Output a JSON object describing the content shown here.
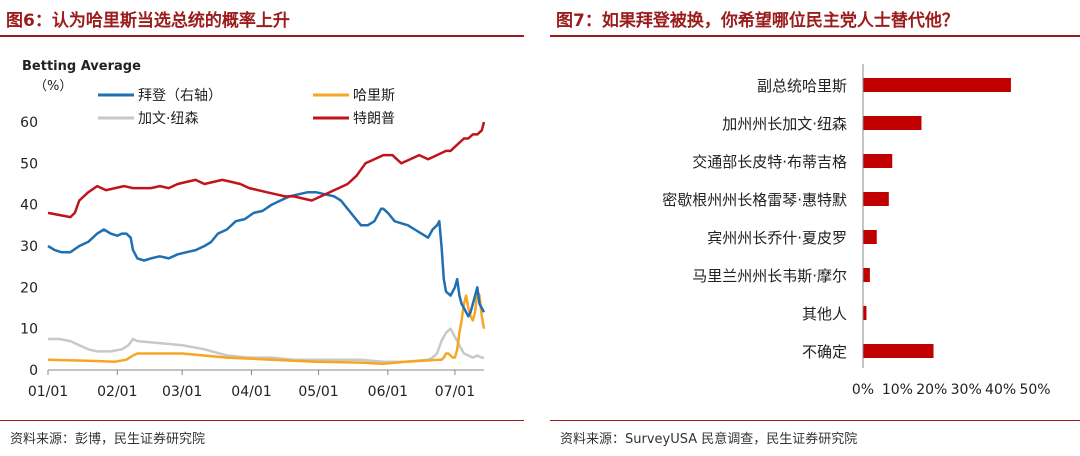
{
  "left": {
    "title": "图6：认为哈里斯当选总统的概率上升",
    "source": "资料来源：彭博，民生证券研究院"
  },
  "right": {
    "title": "图7：如果拜登被换，你希望哪位民主党人士替代他？",
    "source": "资料来源：SurveyUSA 民意调查，民生证券研究院"
  },
  "colors": {
    "title": "#9b1c1c",
    "biden": "#1f6fb4",
    "harris": "#f5a623",
    "kennedy": "#c8c8c8",
    "trump": "#c0141c",
    "bar": "#c00000"
  },
  "chart_data": [
    {
      "type": "line",
      "title": "Betting Average",
      "ylabel": "（%）",
      "ylim": [
        0,
        60
      ],
      "yticks": [
        "0",
        "10",
        "20",
        "30",
        "40",
        "50",
        "60"
      ],
      "xlim": [
        0,
        195
      ],
      "xticks": [
        {
          "label": "01/01",
          "x": 0
        },
        {
          "label": "02/01",
          "x": 31
        },
        {
          "label": "03/01",
          "x": 60
        },
        {
          "label": "04/01",
          "x": 91
        },
        {
          "label": "05/01",
          "x": 121
        },
        {
          "label": "06/01",
          "x": 152
        },
        {
          "label": "07/01",
          "x": 182
        }
      ],
      "series": [
        {
          "name": "拜登（右轴）",
          "color_key": "biden",
          "x": [
            0,
            3,
            6,
            10,
            14,
            18,
            22,
            25,
            28,
            31,
            33,
            35,
            37,
            38,
            40,
            43,
            46,
            50,
            54,
            58,
            62,
            66,
            70,
            73,
            76,
            80,
            84,
            88,
            92,
            96,
            100,
            104,
            108,
            112,
            116,
            120,
            124,
            128,
            131,
            134,
            137,
            140,
            143,
            146,
            149,
            150,
            152,
            155,
            158,
            161,
            164,
            167,
            170,
            172,
            174,
            175,
            176,
            177,
            178,
            180,
            181,
            182,
            183,
            184,
            185,
            186,
            187,
            188,
            189,
            190,
            191,
            192,
            193,
            194,
            195
          ],
          "y": [
            30,
            29,
            28.5,
            28.5,
            30,
            31,
            33,
            34,
            33,
            32.5,
            33,
            33,
            32,
            29,
            27,
            26.5,
            27,
            27.5,
            27,
            28,
            28.5,
            29,
            30,
            31,
            33,
            34,
            36,
            36.5,
            38,
            38.5,
            40,
            41,
            42,
            42.5,
            43,
            43,
            42.5,
            42,
            41,
            39,
            37,
            35,
            35,
            36,
            39,
            39,
            38,
            36,
            35.5,
            35,
            34,
            33,
            32,
            34,
            35,
            36,
            30,
            22,
            19,
            18,
            19,
            20,
            22,
            18,
            16,
            15,
            14,
            13,
            14,
            16,
            18,
            20,
            16,
            15,
            14
          ]
        },
        {
          "name": "哈里斯",
          "color_key": "harris",
          "x": [
            0,
            20,
            30,
            35,
            38,
            40,
            60,
            80,
            100,
            120,
            140,
            150,
            160,
            175,
            176,
            177,
            178,
            179,
            180,
            181,
            182,
            183,
            184,
            185,
            186,
            187,
            188,
            189,
            190,
            191,
            192,
            193,
            194,
            195
          ],
          "y": [
            2.5,
            2.2,
            2,
            2.5,
            3.5,
            4,
            4,
            3,
            2.5,
            2,
            1.8,
            1.5,
            2,
            2.5,
            2.5,
            3,
            4,
            4,
            3.5,
            3,
            3,
            5,
            9,
            12,
            16,
            18,
            15,
            13,
            12,
            14,
            19,
            18,
            13,
            10
          ]
        },
        {
          "name": "加文·纽森",
          "color_key": "kennedy",
          "x": [
            0,
            5,
            10,
            14,
            18,
            22,
            28,
            33,
            36,
            38,
            40,
            50,
            60,
            70,
            80,
            90,
            100,
            110,
            120,
            130,
            140,
            150,
            160,
            170,
            172,
            174,
            176,
            178,
            180,
            182,
            184,
            186,
            188,
            190,
            192,
            194,
            195
          ],
          "y": [
            7.5,
            7.5,
            7,
            6,
            5,
            4.5,
            4.5,
            5,
            6,
            7.5,
            7,
            6.5,
            6,
            5,
            3.5,
            3,
            3,
            2.5,
            2.5,
            2.5,
            2.5,
            2,
            2,
            2.5,
            3,
            4,
            7,
            9,
            10,
            8,
            6,
            4,
            3.5,
            3,
            3.5,
            3,
            3
          ]
        },
        {
          "name": "特朗普",
          "color_key": "trump",
          "x": [
            0,
            5,
            10,
            12,
            14,
            18,
            22,
            26,
            30,
            34,
            38,
            42,
            46,
            50,
            54,
            58,
            62,
            66,
            70,
            74,
            78,
            82,
            86,
            90,
            94,
            98,
            102,
            106,
            110,
            114,
            118,
            122,
            126,
            130,
            134,
            138,
            142,
            146,
            150,
            154,
            156,
            158,
            162,
            166,
            170,
            174,
            178,
            180,
            182,
            184,
            186,
            188,
            190,
            192,
            194,
            195
          ],
          "y": [
            38,
            37.5,
            37,
            38,
            41,
            43,
            44.5,
            43.5,
            44,
            44.5,
            44,
            44,
            44,
            44.5,
            44,
            45,
            45.5,
            46,
            45,
            45.5,
            46,
            45.5,
            45,
            44,
            43.5,
            43,
            42.5,
            42,
            42,
            41.5,
            41,
            42,
            43,
            44,
            45,
            47,
            50,
            51,
            52,
            52,
            51,
            50,
            51,
            52,
            51,
            52,
            53,
            53,
            54,
            55,
            56,
            56,
            57,
            57,
            58,
            60
          ]
        }
      ]
    },
    {
      "type": "bar",
      "orientation": "horizontal",
      "categories": [
        "副总统哈里斯",
        "加州州长加文·纽森",
        "交通部长皮特·布蒂吉格",
        "密歇根州州长格雷琴·惠特默",
        "宾州州长乔什·夏皮罗",
        "马里兰州州长韦斯·摩尔",
        "其他人",
        "不确定"
      ],
      "values": [
        43,
        17,
        8.5,
        7.5,
        4,
        2,
        1,
        20.5
      ],
      "xlim": [
        0,
        50
      ],
      "xticks": [
        "0%",
        "10%",
        "20%",
        "30%",
        "40%",
        "50%"
      ]
    }
  ]
}
